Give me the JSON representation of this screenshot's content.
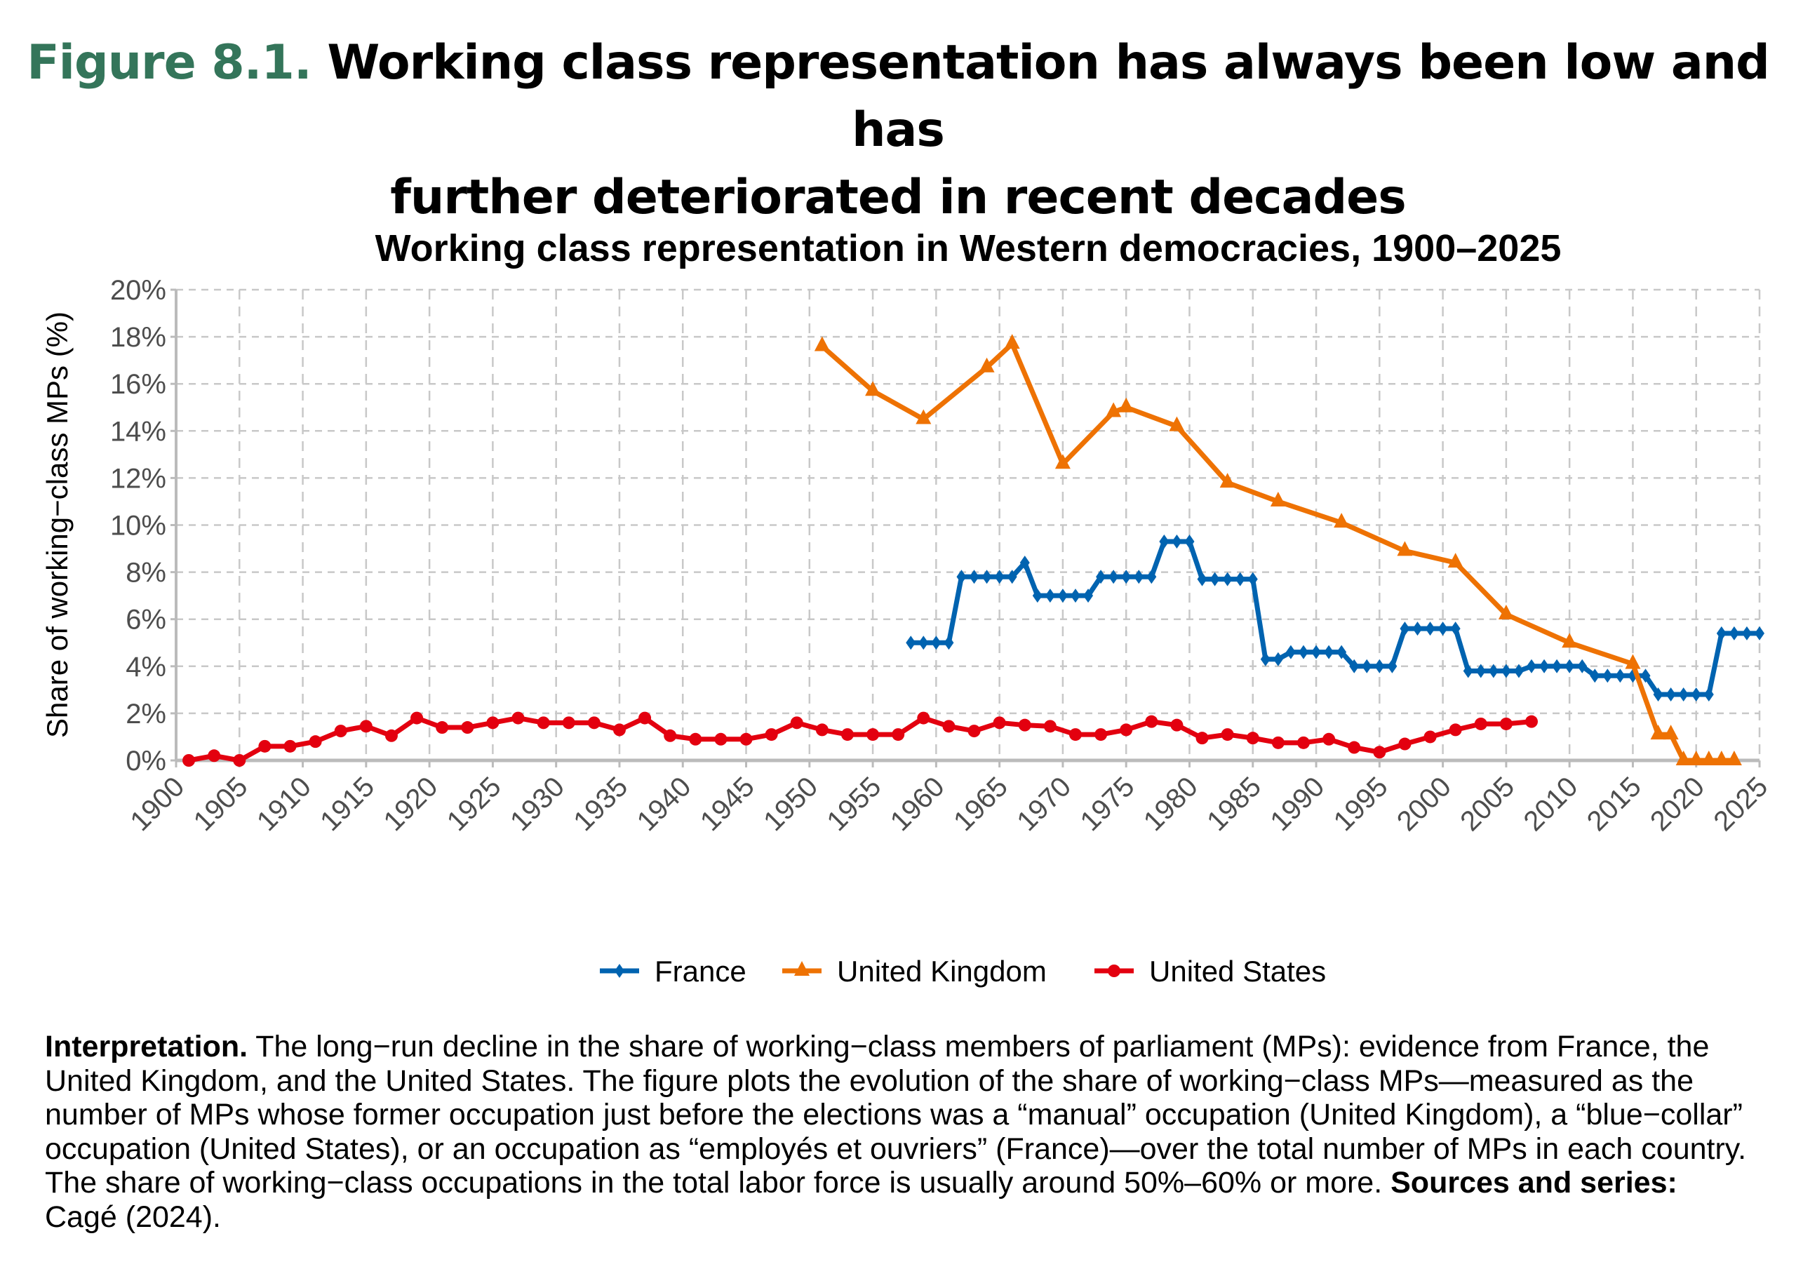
{
  "figure": {
    "number": "Figure 8.1.",
    "title": "Working class representation has always been low and has further deteriorated in recent decades",
    "title_line1": "Working class representation has always been low and has",
    "title_line2": "further deteriorated in recent decades",
    "number_color": "#34755a"
  },
  "chart_data": {
    "type": "line",
    "title": "Working class representation in Western democracies, 1900–2025",
    "xlabel": "",
    "ylabel": "Share of working−class MPs (%)",
    "xlim": [
      1900,
      2025
    ],
    "ylim": [
      0,
      20
    ],
    "x_ticks": [
      "1900",
      "1905",
      "1910",
      "1915",
      "1920",
      "1925",
      "1930",
      "1935",
      "1940",
      "1945",
      "1950",
      "1955",
      "1960",
      "1965",
      "1970",
      "1975",
      "1980",
      "1985",
      "1990",
      "1995",
      "2000",
      "2005",
      "2010",
      "2015",
      "2020",
      "2025"
    ],
    "y_ticks": [
      "0%",
      "2%",
      "4%",
      "6%",
      "8%",
      "10%",
      "12%",
      "14%",
      "16%",
      "18%",
      "20%"
    ],
    "grid": true,
    "legend_position": "bottom",
    "series": [
      {
        "name": "France",
        "color": "#0063b0",
        "marker": "diamond",
        "x": [
          1958,
          1959,
          1960,
          1961,
          1962,
          1963,
          1964,
          1965,
          1966,
          1967,
          1968,
          1969,
          1970,
          1971,
          1972,
          1973,
          1974,
          1975,
          1976,
          1977,
          1978,
          1979,
          1980,
          1981,
          1982,
          1983,
          1984,
          1985,
          1986,
          1987,
          1988,
          1989,
          1990,
          1991,
          1992,
          1993,
          1994,
          1995,
          1996,
          1997,
          1998,
          1999,
          2000,
          2001,
          2002,
          2003,
          2004,
          2005,
          2006,
          2007,
          2008,
          2009,
          2010,
          2011,
          2012,
          2013,
          2014,
          2015,
          2016,
          2017,
          2018,
          2019,
          2020,
          2021,
          2022,
          2023,
          2024,
          2025
        ],
        "values": [
          5.0,
          5.0,
          5.0,
          5.0,
          7.8,
          7.8,
          7.8,
          7.8,
          7.8,
          8.4,
          7.0,
          7.0,
          7.0,
          7.0,
          7.0,
          7.8,
          7.8,
          7.8,
          7.8,
          7.8,
          9.3,
          9.3,
          9.3,
          7.7,
          7.7,
          7.7,
          7.7,
          7.7,
          4.3,
          4.3,
          4.6,
          4.6,
          4.6,
          4.6,
          4.6,
          4.0,
          4.0,
          4.0,
          4.0,
          5.6,
          5.6,
          5.6,
          5.6,
          5.6,
          3.8,
          3.8,
          3.8,
          3.8,
          3.8,
          4.0,
          4.0,
          4.0,
          4.0,
          4.0,
          3.6,
          3.6,
          3.6,
          3.6,
          3.6,
          2.8,
          2.8,
          2.8,
          2.8,
          2.8,
          5.4,
          5.4,
          5.4,
          5.4
        ]
      },
      {
        "name": "United Kingdom",
        "color": "#ee7203",
        "marker": "triangle",
        "x": [
          1951,
          1955,
          1959,
          1964,
          1966,
          1970,
          1974,
          1975,
          1979,
          1983,
          1987,
          1992,
          1997,
          2001,
          2005,
          2010,
          2015,
          2017,
          2018,
          2019,
          2020,
          2021,
          2022,
          2023
        ],
        "values": [
          17.6,
          15.7,
          14.5,
          16.7,
          17.7,
          12.6,
          14.8,
          15.0,
          14.2,
          11.8,
          11.0,
          10.1,
          8.9,
          8.4,
          6.2,
          5.0,
          4.1,
          1.1,
          1.1,
          0,
          0,
          0,
          0,
          0
        ]
      },
      {
        "name": "United States",
        "color": "#e3000f",
        "marker": "circle",
        "x": [
          1901,
          1903,
          1905,
          1907,
          1909,
          1911,
          1913,
          1915,
          1917,
          1919,
          1921,
          1923,
          1925,
          1927,
          1929,
          1931,
          1933,
          1935,
          1937,
          1939,
          1941,
          1943,
          1945,
          1947,
          1949,
          1951,
          1953,
          1955,
          1957,
          1959,
          1961,
          1963,
          1965,
          1967,
          1969,
          1971,
          1973,
          1975,
          1977,
          1979,
          1981,
          1983,
          1985,
          1987,
          1989,
          1991,
          1993,
          1995,
          1997,
          1999,
          2001,
          2003,
          2005,
          2007
        ],
        "values": [
          0,
          0.2,
          0,
          0.6,
          0.6,
          0.8,
          1.25,
          1.45,
          1.05,
          1.8,
          1.4,
          1.4,
          1.6,
          1.8,
          1.6,
          1.6,
          1.6,
          1.3,
          1.8,
          1.05,
          0.9,
          0.9,
          0.9,
          1.1,
          1.6,
          1.3,
          1.1,
          1.1,
          1.1,
          1.8,
          1.45,
          1.25,
          1.6,
          1.5,
          1.45,
          1.1,
          1.1,
          1.3,
          1.65,
          1.5,
          0.95,
          1.1,
          0.95,
          0.75,
          0.75,
          0.9,
          0.55,
          0.35,
          0.7,
          1.0,
          1.3,
          1.55,
          1.55,
          1.65
        ]
      }
    ]
  },
  "note": {
    "label": "Interpretation.",
    "text": " The long−run decline in the share of working−class members of parliament (MPs): evidence from France, the United Kingdom, and the United States. The figure plots the evolution of the share of working−class MPs—measured as the number of MPs whose former occupation just before the elections was a “manual” occupation (United Kingdom), a “blue−collar” occupation (United States), or an occupation as “employés et ouvriers” (France)—over the total number of MPs in each country. The share of working−class occupations in the total labor force is usually around 50%–60% or more. ",
    "sources_label": "Sources and series:",
    "sources_text": " Cagé (2024)."
  }
}
